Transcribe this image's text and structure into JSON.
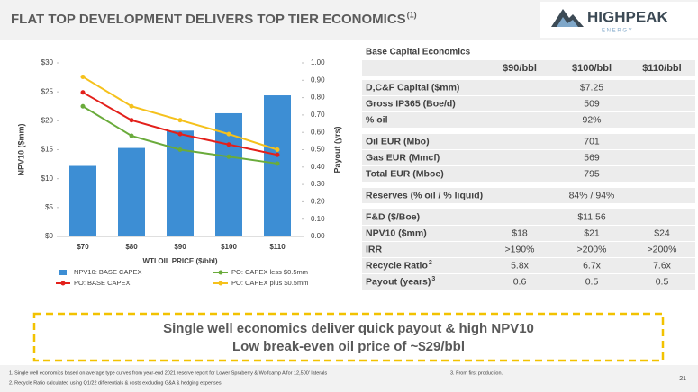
{
  "header": {
    "title": "FLAT TOP DEVELOPMENT DELIVERS TOP TIER ECONOMICS",
    "title_note": "(1)",
    "logo": {
      "name": "HIGHPEAK",
      "tagline": "E N E R G Y"
    }
  },
  "chart_data": {
    "type": "bar",
    "categories": [
      "$70",
      "$80",
      "$90",
      "$100",
      "$110"
    ],
    "x_label": "WTI OIL PRICE ($/bbl)",
    "y_label": "NPV10 ($mm)",
    "y2_label": "Payout (yrs)",
    "ylim": [
      0,
      30
    ],
    "yticks": [
      {
        "value": 0,
        "label": "$0"
      },
      {
        "value": 5,
        "label": "$5"
      },
      {
        "value": 10,
        "label": "$10"
      },
      {
        "value": 15,
        "label": "$15"
      },
      {
        "value": 20,
        "label": "$20"
      },
      {
        "value": 25,
        "label": "$25"
      },
      {
        "value": 30,
        "label": "$30"
      }
    ],
    "y2lim": [
      0,
      1
    ],
    "y2ticks": [
      {
        "value": 0,
        "label": "0.00"
      },
      {
        "value": 0.1,
        "label": "0.10"
      },
      {
        "value": 0.2,
        "label": "0.20"
      },
      {
        "value": 0.3,
        "label": "0.30"
      },
      {
        "value": 0.4,
        "label": "0.40"
      },
      {
        "value": 0.5,
        "label": "0.50"
      },
      {
        "value": 0.6,
        "label": "0.60"
      },
      {
        "value": 0.7,
        "label": "0.70"
      },
      {
        "value": 0.8,
        "label": "0.80"
      },
      {
        "value": 0.9,
        "label": "0.90"
      },
      {
        "value": 1,
        "label": "1.00"
      }
    ],
    "series": [
      {
        "name": "NPV10: BASE CAPEX",
        "type": "bar",
        "color": "#3d8ed4",
        "values": [
          12.2,
          15.3,
          18.3,
          21.3,
          24.4
        ]
      },
      {
        "name": "PO: CAPEX less $0.5mm",
        "type": "line",
        "axis": "y2",
        "color": "#6aab3b",
        "values": [
          0.75,
          0.58,
          0.5,
          0.46,
          0.42
        ]
      },
      {
        "name": "PO: BASE CAPEX",
        "type": "line",
        "axis": "y2",
        "color": "#e3201b",
        "values": [
          0.83,
          0.67,
          0.59,
          0.53,
          0.47
        ]
      },
      {
        "name": "PO: CAPEX plus $0.5mm",
        "type": "line",
        "axis": "y2",
        "color": "#f5c11c",
        "values": [
          0.92,
          0.75,
          0.67,
          0.59,
          0.5
        ]
      }
    ]
  },
  "table": {
    "title": "Base Capital Economics",
    "columns": [
      "$90/bbl",
      "$100/bbl",
      "$110/bbl"
    ],
    "groups": [
      [
        {
          "label": "D,C&F Capital ($mm)",
          "values": [
            "$7.25"
          ]
        },
        {
          "label": "Gross IP365 (Boe/d)",
          "values": [
            "509"
          ]
        },
        {
          "label": "% oil",
          "values": [
            "92%"
          ]
        }
      ],
      [
        {
          "label": "Oil EUR (Mbo)",
          "values": [
            "701"
          ]
        },
        {
          "label": "Gas EUR (Mmcf)",
          "values": [
            "569"
          ]
        },
        {
          "label": "Total EUR (Mboe)",
          "values": [
            "795"
          ]
        }
      ],
      [
        {
          "label": "Reserves (% oil / % liquid)",
          "values": [
            "84% / 94%"
          ]
        }
      ],
      [
        {
          "label": "F&D ($/Boe)",
          "values": [
            "$11.56"
          ]
        },
        {
          "label": "NPV10 ($mm)",
          "values": [
            "$18",
            "$21",
            "$24"
          ]
        },
        {
          "label": "IRR",
          "values": [
            ">190%",
            ">200%",
            ">200%"
          ]
        },
        {
          "label": "Recycle Ratio",
          "note": "2",
          "values": [
            "5.8x",
            "6.7x",
            "7.6x"
          ]
        },
        {
          "label": "Payout (years)",
          "note": "3",
          "values": [
            "0.6",
            "0.5",
            "0.5"
          ]
        }
      ]
    ]
  },
  "callout": [
    "Single well economics deliver quick payout & high NPV10",
    "Low break-even oil price of ~$29/bbl"
  ],
  "footnotes": [
    "1.  Single well economics based on average type curves from year-end 2021 reserve report for Lower Spraberry & Wolfcamp A for 12,500' laterals",
    "2.  Recycle Ratio calculated using Q1/22 differentials & costs excluding G&A & hedging expenses",
    "3.  From first production."
  ],
  "page_number": "21"
}
